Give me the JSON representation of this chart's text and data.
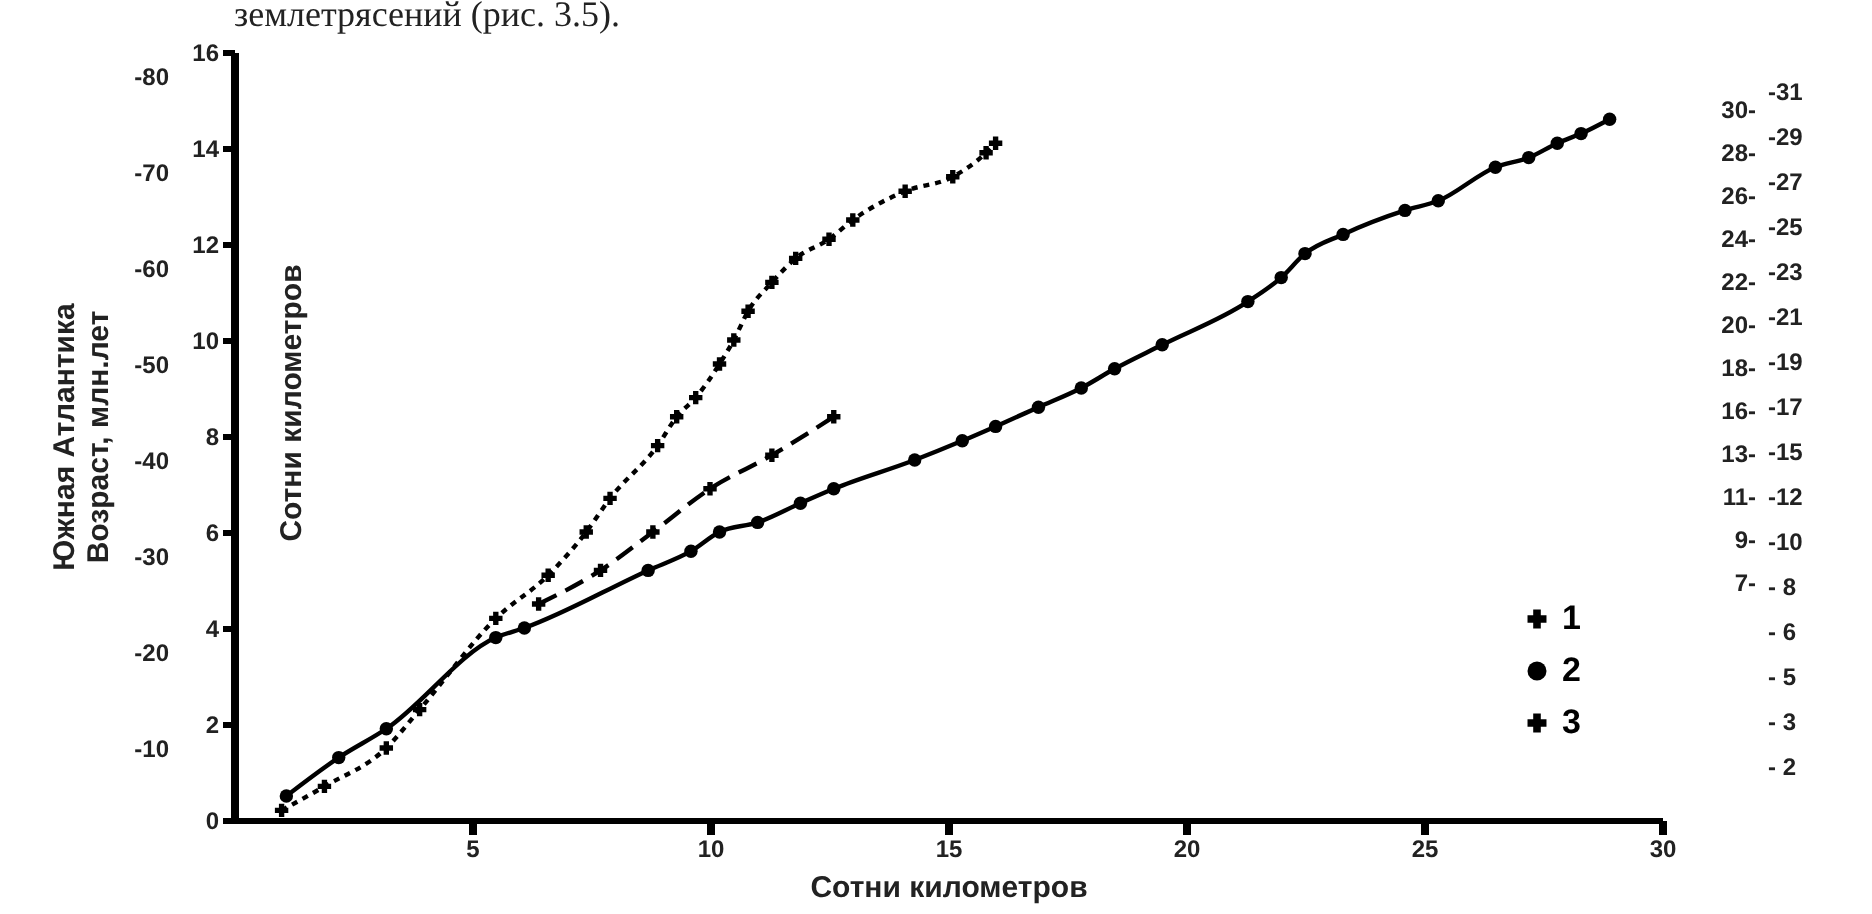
{
  "chart_data": {
    "type": "line",
    "annotations": [
      "землетрясений (рис. 3.5).",
      "30-\n28-\n26-\n24-\n22-\n20-\n18-\n16-\n13-\n11-\n9-\n7-",
      "-31\n-29\n-27\n-25\n-23\n-21\n-19\n-17\n-15\n-12\n-10\n- 8\n- 6\n- 5\n- 3\n- 2"
    ],
    "xlabel": "Сотни километров",
    "ylabel": "Сотни километров",
    "y2label": "Южная Атлантика\nВозраст, млн.лет",
    "xlim": [
      0,
      30
    ],
    "xticks": [
      5,
      10,
      15,
      20,
      25,
      30
    ],
    "ylim": [
      0,
      16
    ],
    "yticks": [
      0,
      2,
      4,
      6,
      8,
      10,
      12,
      14,
      16
    ],
    "y2lim": [
      -2.5,
      -82.5
    ],
    "y2ticks": [
      -10,
      -20,
      -30,
      -40,
      -50,
      -60,
      -70,
      -80
    ],
    "legend": "bottom right",
    "series": [
      {
        "name": "1",
        "color": "#000000",
        "marker": "cross",
        "line_style": "dashed",
        "x": [
          6.4,
          7.7,
          8.8,
          10.0,
          11.3,
          12.6
        ],
        "values": [
          4.5,
          5.2,
          6.0,
          6.9,
          7.6,
          8.4
        ]
      },
      {
        "name": "2",
        "color": "#000000",
        "marker": "circle",
        "line_style": "solid",
        "x": [
          1.1,
          2.2,
          3.2,
          5.5,
          6.1,
          8.7,
          9.6,
          10.2,
          11.0,
          11.9,
          12.6,
          14.3,
          15.3,
          16.0,
          16.9,
          17.8,
          18.5,
          19.5,
          21.3,
          22.0,
          22.5,
          23.3,
          24.6,
          25.3,
          26.5,
          27.2,
          27.8,
          28.3,
          28.9
        ],
        "values": [
          0.5,
          1.3,
          1.9,
          3.8,
          4.0,
          5.2,
          5.6,
          6.0,
          6.2,
          6.6,
          6.9,
          7.5,
          7.9,
          8.2,
          8.6,
          9.0,
          9.4,
          9.9,
          10.8,
          11.3,
          11.8,
          12.2,
          12.7,
          12.9,
          13.6,
          13.8,
          14.1,
          14.3,
          14.6
        ]
      },
      {
        "name": "3",
        "color": "#000000",
        "marker": "cross",
        "line_style": "dotted",
        "x": [
          1.0,
          1.9,
          3.2,
          3.9,
          5.5,
          6.6,
          7.4,
          7.9,
          8.9,
          9.3,
          9.7,
          10.2,
          10.5,
          10.8,
          11.3,
          11.8,
          12.5,
          13.0,
          14.1,
          15.1,
          15.8,
          16.0
        ],
        "values": [
          0.2,
          0.7,
          1.5,
          2.3,
          4.2,
          5.1,
          6.0,
          6.7,
          7.8,
          8.4,
          8.8,
          9.5,
          10.0,
          10.6,
          11.2,
          11.7,
          12.1,
          12.5,
          13.1,
          13.4,
          13.9,
          14.1
        ]
      }
    ]
  }
}
